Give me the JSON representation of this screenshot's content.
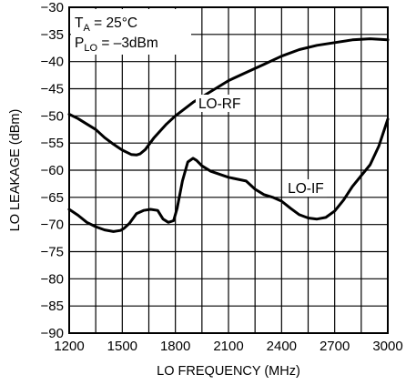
{
  "chart_data": {
    "type": "line",
    "title": "",
    "xlabel": "LO FREQUENCY (MHz)",
    "ylabel": "LO LEAKAGE (dBm)",
    "xlim": [
      1200,
      3000
    ],
    "ylim": [
      -90,
      -30
    ],
    "xticks": [
      1200,
      1500,
      1800,
      2100,
      2400,
      2700,
      3000
    ],
    "yticks": [
      -30,
      -35,
      -40,
      -45,
      -50,
      -55,
      -60,
      -65,
      -70,
      -75,
      -80,
      -85,
      -90
    ],
    "x_minor_gridlines": [
      1350,
      1650,
      1950,
      2250,
      2550,
      2850
    ],
    "grid": true,
    "legend": "none",
    "annotations": [
      {
        "base": "T",
        "sub": "A",
        "rest": " = 25°C"
      },
      {
        "base": "P",
        "sub": "LO",
        "rest": " = –3dBm"
      }
    ],
    "series": [
      {
        "name": "LO-RF",
        "x": [
          1200,
          1250,
          1300,
          1350,
          1400,
          1450,
          1500,
          1550,
          1580,
          1600,
          1630,
          1680,
          1750,
          1800,
          1900,
          2000,
          2100,
          2200,
          2300,
          2400,
          2500,
          2600,
          2700,
          2800,
          2900,
          3000
        ],
        "y": [
          -49.7,
          -50.5,
          -51.5,
          -52.5,
          -54,
          -55.2,
          -56.3,
          -57.1,
          -57.2,
          -57,
          -56.2,
          -54,
          -51.5,
          -50,
          -47.5,
          -45.5,
          -43.5,
          -42,
          -40.5,
          -39,
          -37.8,
          -37,
          -36.5,
          -36,
          -35.8,
          -36
        ]
      },
      {
        "name": "LO-IF",
        "x": [
          1200,
          1250,
          1300,
          1350,
          1400,
          1450,
          1490,
          1510,
          1540,
          1580,
          1620,
          1660,
          1700,
          1730,
          1760,
          1790,
          1810,
          1840,
          1870,
          1900,
          1920,
          1950,
          2000,
          2100,
          2200,
          2250,
          2300,
          2350,
          2400,
          2450,
          2500,
          2550,
          2600,
          2650,
          2700,
          2750,
          2800,
          2850,
          2900,
          2950,
          3000
        ],
        "y": [
          -67.2,
          -68.3,
          -69.6,
          -70.4,
          -71,
          -71.3,
          -71.1,
          -70.7,
          -69.8,
          -68,
          -67.4,
          -67.2,
          -67.4,
          -69,
          -69.6,
          -69.3,
          -67,
          -62,
          -58.5,
          -57.8,
          -58.2,
          -59.2,
          -60.2,
          -61.3,
          -62,
          -63.5,
          -64.5,
          -65,
          -65.7,
          -67,
          -68.2,
          -68.8,
          -69,
          -68.7,
          -67.5,
          -65.5,
          -63,
          -61,
          -59,
          -55.5,
          -50.6
        ]
      }
    ]
  }
}
